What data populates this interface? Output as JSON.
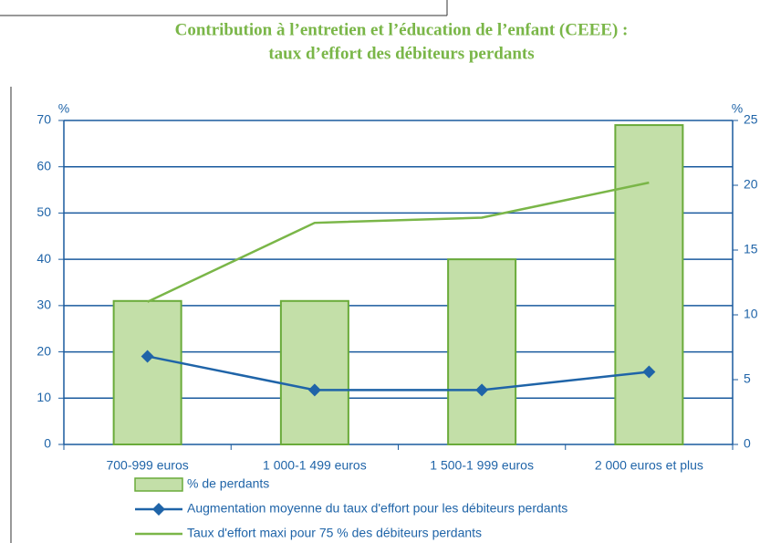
{
  "chart_data": {
    "type": "bar",
    "title": "Contribution à l’entretien et l’éducation de l’enfant (CEEE) :",
    "subtitle": "taux d’effort des débiteurs perdants",
    "ylabel": "%",
    "y2label": "%",
    "categories": [
      "700-999 euros",
      "1 000-1 499 euros",
      "1 500-1 999 euros",
      "2 000 euros et plus"
    ],
    "ylim": [
      0,
      70
    ],
    "yticks": [
      0,
      10,
      20,
      30,
      40,
      50,
      60,
      70
    ],
    "y2lim": [
      0,
      25
    ],
    "y2ticks": [
      0,
      5,
      10,
      15,
      20,
      25
    ],
    "grid": true,
    "series": [
      {
        "name": "% de perdants",
        "type": "bar",
        "color": "#c3dfa8",
        "edge": "#6aab3a",
        "values": [
          31,
          31,
          40,
          69
        ]
      },
      {
        "name": "Augmentation moyenne du taux d'effort pour les débiteurs perdants",
        "type": "line",
        "marker": "diamond",
        "axis": "y2",
        "color": "#1f64a8",
        "values": [
          6.8,
          4.2,
          4.2,
          5.6
        ]
      },
      {
        "name": "Taux d'effort maxi pour 75 % des débiteurs perdants",
        "type": "line",
        "axis": "y2",
        "color": "#7ab648",
        "values": [
          11,
          17.1,
          17.5,
          20.2
        ]
      }
    ]
  }
}
